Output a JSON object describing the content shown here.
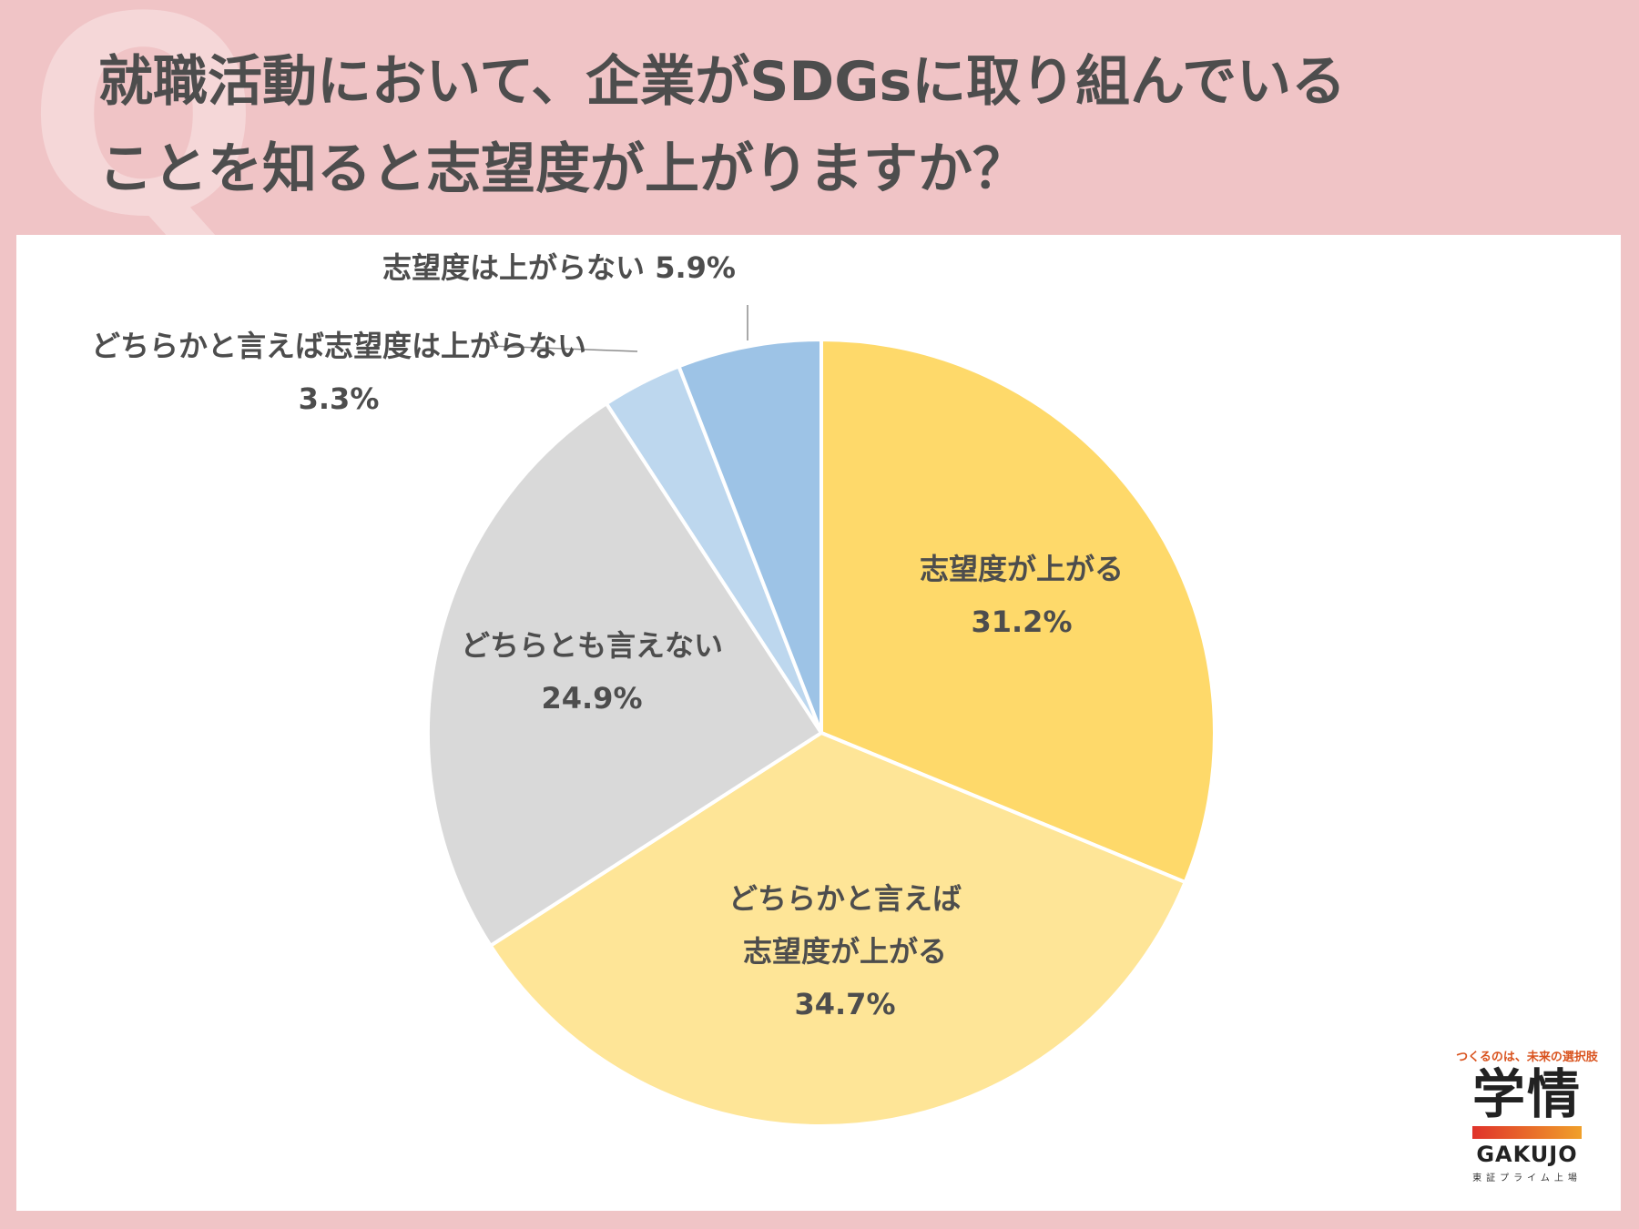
{
  "title": {
    "line1": "就職活動において、企業がSDGsに取り組んでいる",
    "line2": "ことを知ると志望度が上がりますか？"
  },
  "decoration": {
    "q_mark": "Q"
  },
  "logo": {
    "tagline": "つくるのは、未来の選択肢",
    "name_kanji": "学情",
    "name_en": "GAKUJO",
    "sub": "東証プライム上場"
  },
  "chart_data": {
    "type": "pie",
    "start_angle": "12 o'clock",
    "direction": "clockwise",
    "slices": [
      {
        "label": "志望度が上がる",
        "value": 31.2,
        "value_label": "31.2%",
        "color": "#fed96a"
      },
      {
        "label": "どちらかと言えば\n志望度が上がる",
        "value": 34.7,
        "value_label": "34.7%",
        "color": "#fee597"
      },
      {
        "label": "どちらとも言えない",
        "value": 24.9,
        "value_label": "24.9%",
        "color": "#d9d9d9"
      },
      {
        "label": "どちらかと言えば志望度は上がらない",
        "value": 3.3,
        "value_label": "3.3%",
        "color": "#bdd7ee"
      },
      {
        "label": "志望度は上がらない",
        "value": 5.9,
        "value_label": "5.9%",
        "color": "#9dc3e6"
      }
    ]
  }
}
